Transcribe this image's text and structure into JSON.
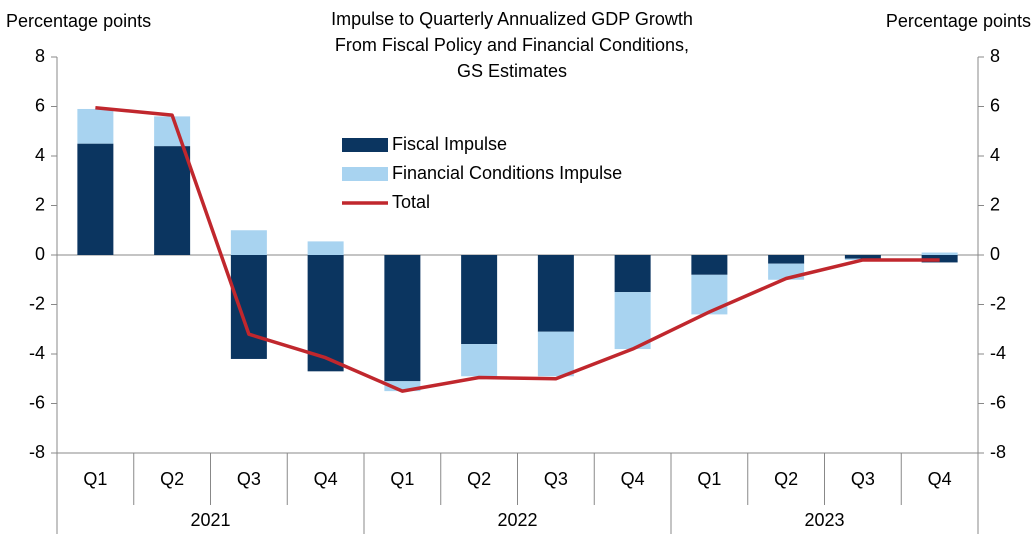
{
  "chart_data": {
    "type": "bar",
    "title": [
      "Impulse to Quarterly Annualized GDP Growth",
      "From Fiscal Policy and Financial Conditions,",
      "GS Estimates"
    ],
    "y_label": "Percentage points",
    "y2_label": "Percentage points",
    "categories": [
      "Q1",
      "Q2",
      "Q3",
      "Q4",
      "Q1",
      "Q2",
      "Q3",
      "Q4",
      "Q1",
      "Q2",
      "Q3",
      "Q4"
    ],
    "groups": [
      "2021",
      "2022",
      "2023"
    ],
    "series": [
      {
        "name": "Fiscal Impulse",
        "type": "bar",
        "color": "#0b3560",
        "values": [
          4.5,
          4.4,
          -4.2,
          -4.7,
          -5.1,
          -3.6,
          -3.1,
          -1.5,
          -0.8,
          -0.35,
          -0.15,
          -0.3
        ]
      },
      {
        "name": "Financial Conditions Impulse",
        "type": "bar",
        "color": "#a8d3f0",
        "values": [
          1.4,
          1.2,
          1.0,
          0.55,
          -0.4,
          -1.3,
          -1.8,
          -2.3,
          -1.6,
          -0.65,
          -0.05,
          0.1
        ]
      },
      {
        "name": "Total",
        "type": "line",
        "color": "#c0272d",
        "values": [
          5.95,
          5.65,
          -3.2,
          -4.15,
          -5.5,
          -4.95,
          -5.0,
          -3.8,
          -2.3,
          -0.95,
          -0.2,
          -0.2
        ]
      }
    ],
    "ylim": [
      -8,
      8
    ],
    "yticks": [
      -8,
      -6,
      -4,
      -2,
      0,
      2,
      4,
      6,
      8
    ],
    "y2lim": [
      -8,
      8
    ],
    "y2ticks": [
      -8,
      -6,
      -4,
      -2,
      0,
      2,
      4,
      6,
      8
    ],
    "stacked": true
  }
}
